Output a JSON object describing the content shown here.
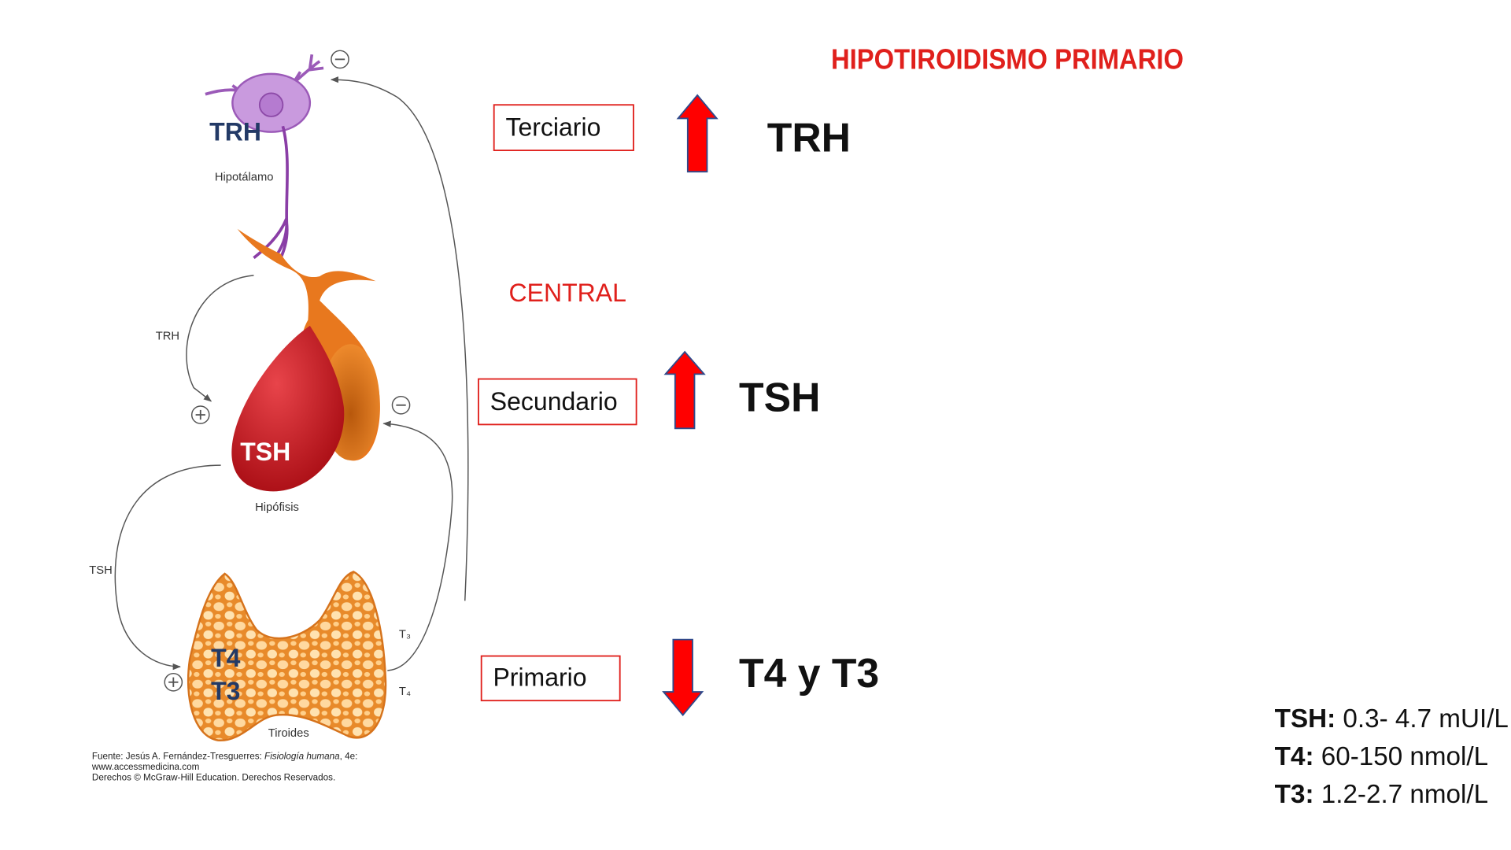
{
  "title": "HIPOTIROIDISMO PRIMARIO",
  "central_label": "CENTRAL",
  "levels": [
    {
      "label": "Terciario",
      "hormone": "TRH"
    },
    {
      "label": "Secundario",
      "hormone": "TSH"
    },
    {
      "label": "Primario",
      "hormone": "T4 y T3"
    }
  ],
  "illustration": {
    "hypothalamus": {
      "hormone": "TRH",
      "label": "Hipotálamo"
    },
    "pituitary": {
      "hormone": "TSH",
      "label": "Hipófisis"
    },
    "thyroid": {
      "hormones": [
        "T4",
        "T3"
      ],
      "label": "Tiroides"
    },
    "pathway_labels": {
      "trh": "TRH",
      "tsh": "TSH",
      "t3": "T₃",
      "t4": "T₄"
    }
  },
  "source": {
    "prefix": "Fuente: Jesús A. Fernández-Tresguerres:",
    "book": "Fisiología humana",
    "suffix": ", 4e:",
    "url": "www.accessmedicina.com",
    "rights": "Derechos © McGraw-Hill Education. Derechos Reservados."
  },
  "reference_ranges": [
    {
      "hormone": "TSH:",
      "range": "0.3- 4.7 mUI/L"
    },
    {
      "hormone": "T4:",
      "range": "60-150 nmol/L"
    },
    {
      "hormone": "T3:",
      "range": "1.2-2.7 nmol/L"
    }
  ]
}
